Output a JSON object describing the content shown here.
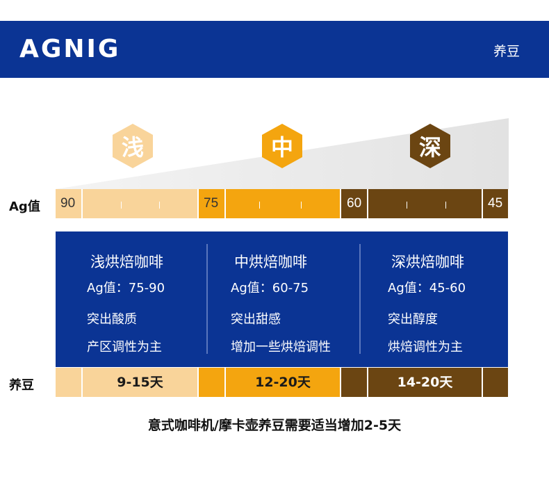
{
  "header": {
    "brand": "AGNIG",
    "subtitle": "养豆"
  },
  "roast_badges": [
    {
      "label": "浅",
      "color": "#f9d49a"
    },
    {
      "label": "中",
      "color": "#f4a50f"
    },
    {
      "label": "深",
      "color": "#6b4512"
    }
  ],
  "ag_row": {
    "label": "Ag值",
    "values": [
      "90",
      "75",
      "60",
      "45"
    ]
  },
  "columns": [
    {
      "title": "浅烘焙咖啡",
      "range": "Ag值：75-90",
      "feature": "突出酸质",
      "note": "产区调性为主"
    },
    {
      "title": "中烘焙咖啡",
      "range": "Ag值：60-75",
      "feature": "突出甜感",
      "note": "增加一些烘焙调性"
    },
    {
      "title": "深烘焙咖啡",
      "range": "Ag值：45-60",
      "feature": "突出醇度",
      "note": "烘焙调性为主"
    }
  ],
  "rest_row": {
    "label": "养豆",
    "days": [
      "9-15天",
      "12-20天",
      "14-20天"
    ]
  },
  "footnote": "意式咖啡机/摩卡壶养豆需要适当增加2-5天",
  "colors": {
    "navy": "#0b3494",
    "light": "#f9d49a",
    "medium": "#f4a50f",
    "dark": "#6b4512",
    "wedge": "#e4e4e4"
  }
}
